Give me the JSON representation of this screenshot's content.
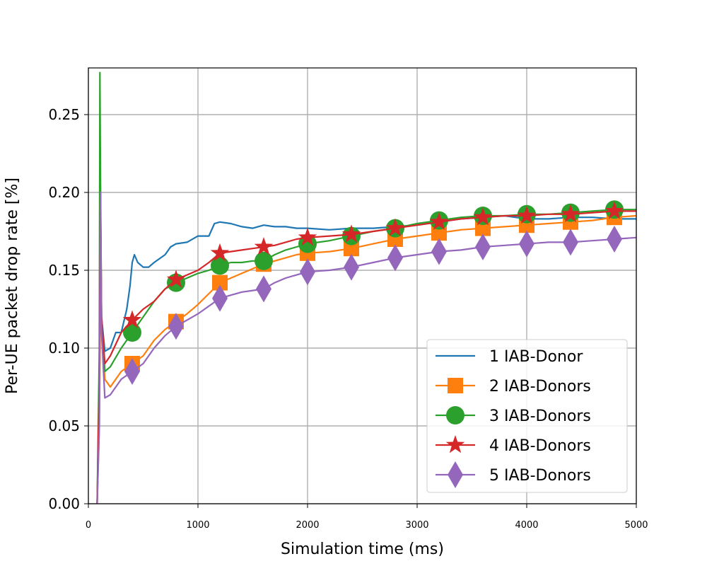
{
  "chart_data": {
    "type": "line",
    "title": "",
    "xlabel": "Simulation time (ms)",
    "ylabel": "Per-UE packet drop rate [%]",
    "xlim": [
      0,
      5000
    ],
    "ylim": [
      0,
      0.28
    ],
    "xticks": [
      "0",
      "1000",
      "2000",
      "3000",
      "4000",
      "5000"
    ],
    "yticks": [
      "0.00",
      "0.05",
      "0.10",
      "0.15",
      "0.20",
      "0.25"
    ],
    "grid": true,
    "legend_position": "lower right",
    "series": [
      {
        "name": "1 IAB-Donor",
        "color": "#1f77b4",
        "marker": "none",
        "x": [
          80,
          100,
          110,
          120,
          150,
          200,
          250,
          300,
          350,
          380,
          400,
          420,
          450,
          500,
          550,
          600,
          700,
          750,
          800,
          900,
          1000,
          1100,
          1150,
          1200,
          1300,
          1400,
          1500,
          1600,
          1700,
          1800,
          1900,
          2000,
          2200,
          2400,
          2600,
          2800,
          3000,
          3200,
          3400,
          3600,
          3800,
          4000,
          4200,
          4400,
          4600,
          4800,
          5000
        ],
        "y": [
          0.0,
          0.06,
          0.19,
          0.12,
          0.098,
          0.1,
          0.11,
          0.11,
          0.125,
          0.14,
          0.155,
          0.16,
          0.155,
          0.152,
          0.152,
          0.155,
          0.16,
          0.165,
          0.167,
          0.168,
          0.172,
          0.172,
          0.18,
          0.181,
          0.18,
          0.178,
          0.177,
          0.179,
          0.178,
          0.178,
          0.177,
          0.177,
          0.176,
          0.177,
          0.177,
          0.178,
          0.179,
          0.181,
          0.183,
          0.184,
          0.185,
          0.183,
          0.183,
          0.184,
          0.184,
          0.183,
          0.183
        ]
      },
      {
        "name": "2 IAB-Donors",
        "color": "#ff7f0e",
        "marker": "square",
        "marker_every": 400,
        "x": [
          80,
          100,
          110,
          150,
          200,
          300,
          400,
          500,
          600,
          700,
          800,
          900,
          1000,
          1100,
          1200,
          1300,
          1400,
          1500,
          1600,
          1700,
          1800,
          1900,
          2000,
          2200,
          2400,
          2600,
          2800,
          3000,
          3200,
          3400,
          3600,
          3800,
          4000,
          4200,
          4400,
          4600,
          4800,
          5000
        ],
        "y": [
          0.0,
          0.05,
          0.13,
          0.08,
          0.075,
          0.085,
          0.09,
          0.095,
          0.105,
          0.112,
          0.117,
          0.122,
          0.128,
          0.135,
          0.142,
          0.145,
          0.148,
          0.151,
          0.154,
          0.156,
          0.158,
          0.16,
          0.161,
          0.162,
          0.164,
          0.167,
          0.17,
          0.172,
          0.174,
          0.176,
          0.177,
          0.178,
          0.179,
          0.18,
          0.181,
          0.182,
          0.184,
          0.185
        ]
      },
      {
        "name": "3 IAB-Donors",
        "color": "#2ca02c",
        "marker": "circle",
        "marker_every": 400,
        "x": [
          80,
          100,
          105,
          110,
          120,
          150,
          200,
          300,
          400,
          500,
          600,
          700,
          800,
          900,
          1000,
          1100,
          1200,
          1300,
          1400,
          1500,
          1600,
          1700,
          1800,
          1900,
          2000,
          2200,
          2400,
          2600,
          2800,
          3000,
          3200,
          3400,
          3600,
          3800,
          4000,
          4200,
          4400,
          4600,
          4800,
          5000
        ],
        "y": [
          0.0,
          0.1,
          0.277,
          0.21,
          0.12,
          0.085,
          0.088,
          0.1,
          0.11,
          0.12,
          0.13,
          0.138,
          0.142,
          0.145,
          0.148,
          0.15,
          0.153,
          0.155,
          0.155,
          0.156,
          0.156,
          0.16,
          0.163,
          0.165,
          0.167,
          0.169,
          0.172,
          0.175,
          0.177,
          0.18,
          0.182,
          0.184,
          0.185,
          0.185,
          0.186,
          0.186,
          0.187,
          0.188,
          0.189,
          0.189
        ]
      },
      {
        "name": "4 IAB-Donors",
        "color": "#d62728",
        "marker": "star",
        "marker_every": 400,
        "x": [
          80,
          100,
          110,
          120,
          150,
          200,
          300,
          400,
          500,
          600,
          700,
          800,
          900,
          1000,
          1100,
          1200,
          1300,
          1400,
          1500,
          1600,
          1700,
          1800,
          1900,
          2000,
          2200,
          2400,
          2600,
          2800,
          3000,
          3200,
          3400,
          3600,
          3800,
          4000,
          4200,
          4400,
          4600,
          4800,
          5000
        ],
        "y": [
          0.0,
          0.08,
          0.2,
          0.12,
          0.09,
          0.095,
          0.11,
          0.118,
          0.125,
          0.13,
          0.138,
          0.144,
          0.147,
          0.15,
          0.155,
          0.161,
          0.162,
          0.163,
          0.164,
          0.165,
          0.166,
          0.168,
          0.17,
          0.171,
          0.172,
          0.173,
          0.175,
          0.177,
          0.179,
          0.181,
          0.183,
          0.184,
          0.185,
          0.185,
          0.186,
          0.186,
          0.187,
          0.188,
          0.188
        ]
      },
      {
        "name": "5 IAB-Donors",
        "color": "#9467bd",
        "marker": "thin_diamond",
        "marker_every": 400,
        "x": [
          80,
          100,
          110,
          120,
          150,
          200,
          300,
          400,
          500,
          600,
          700,
          800,
          900,
          1000,
          1100,
          1200,
          1300,
          1400,
          1500,
          1600,
          1700,
          1800,
          1900,
          2000,
          2200,
          2400,
          2600,
          2800,
          3000,
          3200,
          3400,
          3600,
          3800,
          4000,
          4200,
          4400,
          4600,
          4800,
          5000
        ],
        "y": [
          0.0,
          0.05,
          0.2,
          0.11,
          0.068,
          0.07,
          0.08,
          0.085,
          0.09,
          0.1,
          0.108,
          0.114,
          0.118,
          0.122,
          0.127,
          0.132,
          0.134,
          0.136,
          0.137,
          0.138,
          0.142,
          0.145,
          0.147,
          0.149,
          0.15,
          0.152,
          0.155,
          0.158,
          0.16,
          0.162,
          0.163,
          0.165,
          0.166,
          0.167,
          0.168,
          0.168,
          0.169,
          0.17,
          0.171
        ]
      }
    ]
  }
}
